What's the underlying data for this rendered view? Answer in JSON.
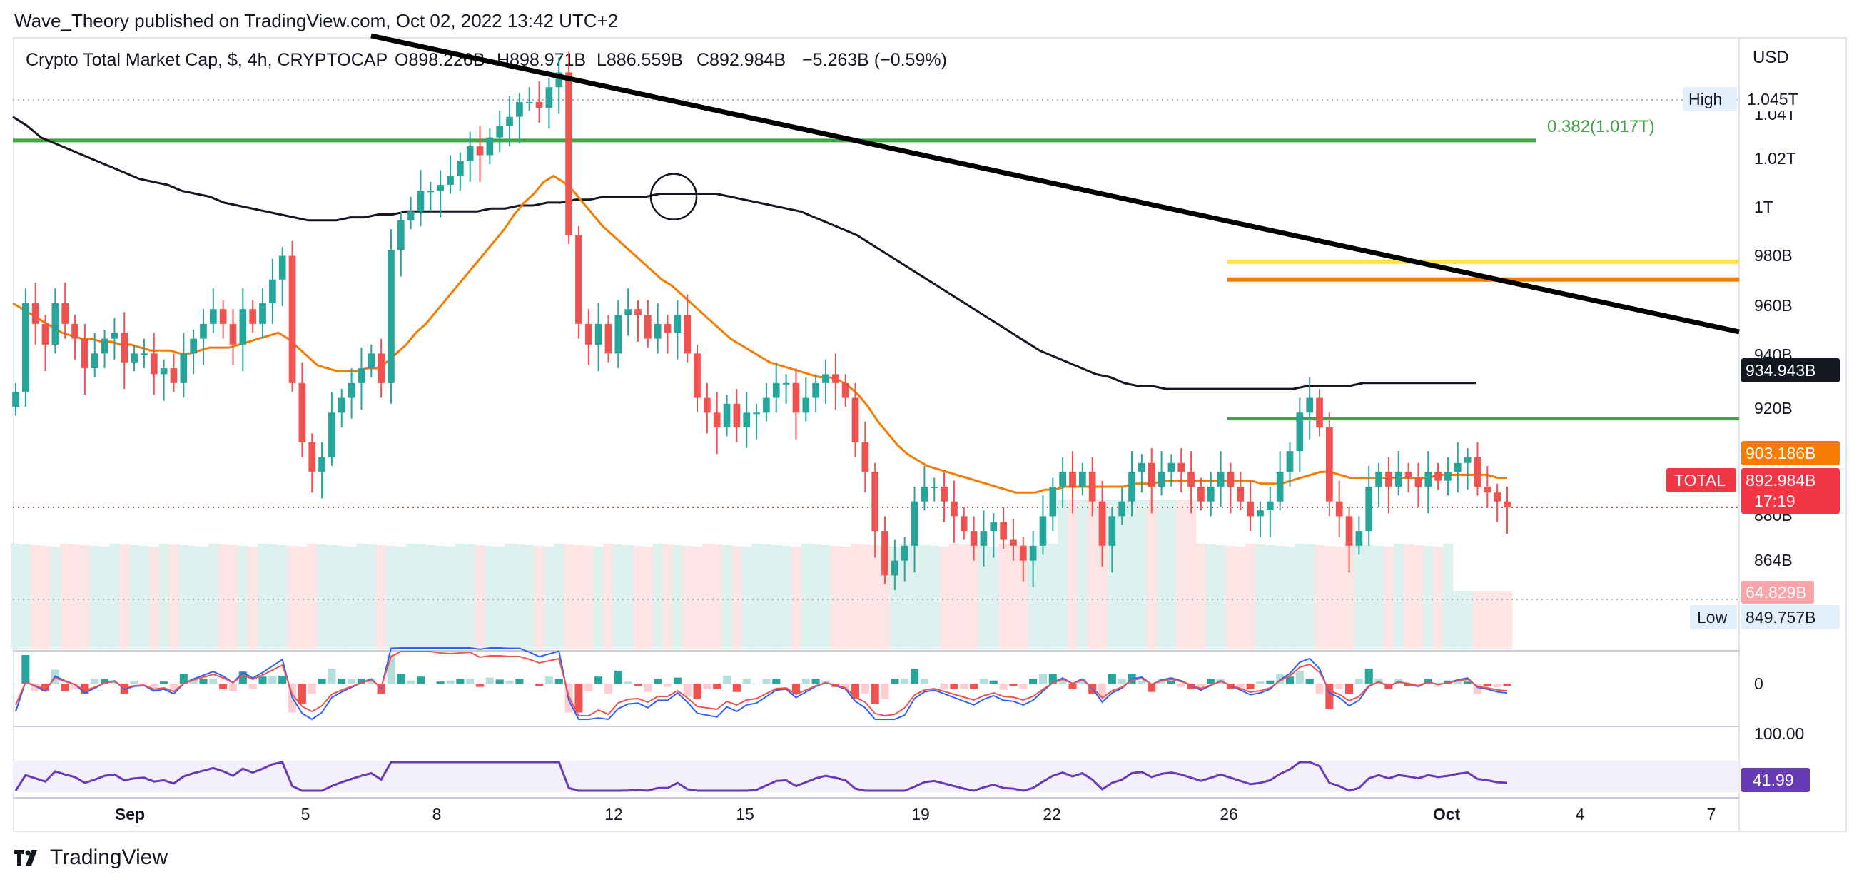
{
  "publisher": "Wave_Theory published on TradingView.com, Oct 02, 2022 13:42 UTC+2",
  "symbol": {
    "name": "Crypto Total Market Cap, $, 4h, CRYPTOCAP",
    "open": "O898.226B",
    "high": "H898.971B",
    "low": "L886.559B",
    "close": "C892.984B",
    "change": "−5.263B (−0.59%)"
  },
  "currency": "USD",
  "brand": "TradingView",
  "colors": {
    "up": "#26a69a",
    "down": "#ef5350",
    "ema_orange": "#f57c00",
    "trend": "#000000",
    "green_level": "#43a047",
    "yellow_level": "#fbe44e",
    "rsi": "#673ab7",
    "price_badge": "#f23645",
    "macd_line": "#2962ff"
  },
  "chart_data": {
    "type": "candlestick",
    "x_ticks": [
      "Sep",
      "5",
      "8",
      "12",
      "15",
      "19",
      "22",
      "26",
      "Oct",
      "4",
      "7"
    ],
    "y_ticks": [
      "1.04T",
      "1.02T",
      "1T",
      "980B",
      "960B",
      "940B",
      "920B",
      "880B",
      "864B"
    ],
    "y_range": [
      845,
      1050
    ],
    "levels": {
      "fib": {
        "label": "0.382(1.017T)",
        "value": 1017
      },
      "yellow": 976,
      "orange": 970,
      "green_support": 923
    },
    "price_badges": {
      "high": {
        "label": "High",
        "value": "1.045T"
      },
      "ma200": "934.943B",
      "ema": "903.186B",
      "total": {
        "label": "TOTAL",
        "value": "892.984B",
        "timer": "17:19"
      },
      "volume": "64.829B",
      "low": {
        "label": "Low",
        "value": "849.757B"
      }
    },
    "closes": [
      932,
      962,
      955,
      948,
      962,
      955,
      950,
      940,
      945,
      950,
      952,
      942,
      945,
      945,
      938,
      940,
      935,
      945,
      950,
      955,
      960,
      955,
      948,
      960,
      955,
      962,
      970,
      978,
      935,
      915,
      905,
      910,
      925,
      930,
      935,
      940,
      945,
      935,
      980,
      990,
      993,
      1000,
      1000,
      1002,
      1005,
      1010,
      1015,
      1012,
      1018,
      1022,
      1025,
      1030,
      1030,
      1028,
      1035,
      1040,
      985,
      955,
      948,
      955,
      945,
      958,
      960,
      958,
      950,
      955,
      952,
      958,
      945,
      930,
      925,
      920,
      928,
      920,
      925,
      925,
      930,
      935,
      935,
      925,
      930,
      935,
      938,
      935,
      930,
      915,
      905,
      885,
      870,
      875,
      880,
      895,
      900,
      900,
      895,
      890,
      885,
      880,
      885,
      888,
      882,
      880,
      875,
      880,
      890,
      900,
      905,
      900,
      905,
      895,
      880,
      890,
      895,
      905,
      908,
      900,
      905,
      908,
      905,
      900,
      895,
      900,
      905,
      900,
      895,
      890,
      892,
      895,
      905,
      912,
      925,
      930,
      920,
      895,
      890,
      880,
      885,
      900,
      905,
      900,
      905,
      903,
      900,
      905,
      902,
      905,
      908,
      910,
      900,
      898,
      895,
      893
    ],
    "ema_line": [
      962,
      960,
      958,
      956,
      954,
      952,
      951,
      950,
      950,
      949,
      949,
      948,
      948,
      947,
      946,
      946,
      946,
      945,
      945,
      946,
      947,
      947,
      947,
      948,
      949,
      950,
      951,
      952,
      950,
      947,
      944,
      941,
      940,
      939,
      939,
      939,
      940,
      940,
      942,
      945,
      948,
      952,
      955,
      959,
      963,
      967,
      971,
      975,
      979,
      983,
      987,
      992,
      996,
      999,
      1003,
      1005,
      1003,
      1000,
      996,
      992,
      988,
      985,
      982,
      979,
      976,
      973,
      970,
      968,
      965,
      962,
      959,
      956,
      953,
      950,
      948,
      946,
      944,
      942,
      941,
      940,
      939,
      938,
      937,
      937,
      936,
      934,
      931,
      927,
      922,
      918,
      914,
      911,
      909,
      907,
      906,
      905,
      904,
      903,
      902,
      901,
      900,
      899,
      898,
      898,
      898,
      899,
      899,
      900,
      900,
      900,
      900,
      900,
      900,
      900,
      901,
      901,
      901,
      902,
      902,
      902,
      902,
      902,
      902,
      902,
      902,
      902,
      902,
      901,
      901,
      901,
      902,
      903,
      904,
      905,
      905,
      904,
      903,
      903,
      903,
      903,
      903,
      903,
      903,
      903,
      903,
      904,
      904,
      904,
      904,
      904,
      904,
      903,
      903
    ],
    "ma200_line": [
      1025,
      1022,
      1018,
      1016,
      1014,
      1012,
      1010,
      1008,
      1006,
      1004,
      1003,
      1002,
      1000,
      999,
      998,
      996,
      995,
      994,
      993,
      992,
      991,
      990,
      990,
      990,
      991,
      991,
      992,
      992,
      993,
      993,
      993,
      993,
      993,
      993,
      994,
      994,
      995,
      995,
      996,
      996,
      997,
      997,
      998,
      998,
      998,
      998,
      999,
      999,
      999,
      999,
      999,
      998,
      997,
      996,
      995,
      994,
      993,
      991,
      989,
      987,
      985,
      982,
      979,
      976,
      973,
      970,
      967,
      964,
      961,
      958,
      955,
      952,
      949,
      946,
      944,
      942,
      940,
      938,
      937,
      935,
      934,
      934,
      933,
      933,
      933,
      933,
      933,
      933,
      933,
      933,
      933,
      933,
      934,
      934,
      934,
      934,
      935,
      935,
      935,
      935,
      935,
      935,
      935,
      935,
      935
    ],
    "rsi_value": "41.99",
    "rsi_upper": "100.00",
    "macd_zero": "0"
  }
}
